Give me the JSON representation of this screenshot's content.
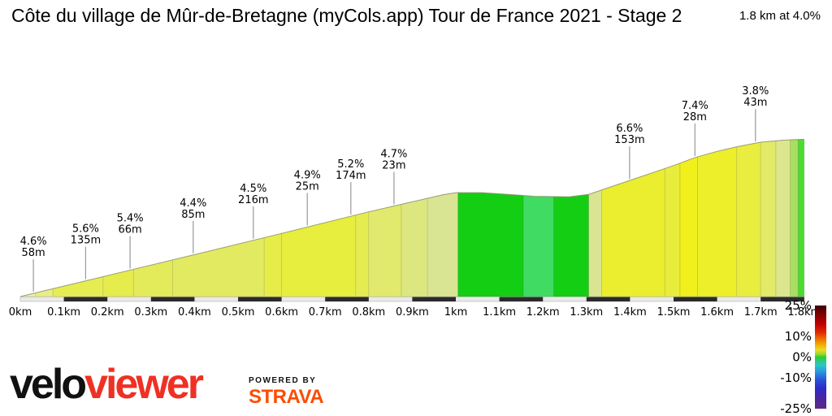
{
  "title": "Côte du village de Mûr-de-Bretagne (myCols.app) Tour de France 2021 - Stage 2",
  "summary": "1.8 km at 4.0%",
  "branding": {
    "velo": "velo",
    "viewer": "viewer",
    "powered_by": "POWERED BY",
    "strava": "STRAVA",
    "viewer_color": "#EE3124",
    "strava_color": "#FC4C02"
  },
  "chart_data": {
    "type": "area",
    "title": "Côte du village de Mûr-de-Bretagne (myCols.app) Tour de France 2021 - Stage 2",
    "total_distance_km": 1.8,
    "average_gradient_pct": 4.0,
    "x_ticks": [
      "0km",
      "0.1km",
      "0.2km",
      "0.3km",
      "0.4km",
      "0.5km",
      "0.6km",
      "0.7km",
      "0.8km",
      "0.9km",
      "1km",
      "1.1km",
      "1.2km",
      "1.3km",
      "1.4km",
      "1.5km",
      "1.6km",
      "1.7km",
      "1.8km"
    ],
    "gradient_labels": [
      {
        "pct": "4.6%",
        "len": "58m",
        "at_km": 0.03
      },
      {
        "pct": "5.6%",
        "len": "135m",
        "at_km": 0.15
      },
      {
        "pct": "5.4%",
        "len": "66m",
        "at_km": 0.252
      },
      {
        "pct": "4.4%",
        "len": "85m",
        "at_km": 0.397
      },
      {
        "pct": "4.5%",
        "len": "216m",
        "at_km": 0.535
      },
      {
        "pct": "4.9%",
        "len": "25m",
        "at_km": 0.659
      },
      {
        "pct": "5.2%",
        "len": "174m",
        "at_km": 0.759
      },
      {
        "pct": "4.7%",
        "len": "23m",
        "at_km": 0.858
      },
      {
        "pct": "6.6%",
        "len": "153m",
        "at_km": 1.399
      },
      {
        "pct": "7.4%",
        "len": "28m",
        "at_km": 1.549
      },
      {
        "pct": "3.8%",
        "len": "43m",
        "at_km": 1.688
      }
    ],
    "profile": [
      {
        "km": 0.0,
        "el": 0.0
      },
      {
        "km": 0.2,
        "el": 9.6
      },
      {
        "km": 0.4,
        "el": 19.2
      },
      {
        "km": 0.6,
        "el": 28.9
      },
      {
        "km": 0.8,
        "el": 38.8
      },
      {
        "km": 0.9,
        "el": 43.4
      },
      {
        "km": 0.97,
        "el": 46.6
      },
      {
        "km": 1.0,
        "el": 47.6
      },
      {
        "km": 1.06,
        "el": 47.6
      },
      {
        "km": 1.12,
        "el": 46.8
      },
      {
        "km": 1.18,
        "el": 45.9
      },
      {
        "km": 1.26,
        "el": 45.7
      },
      {
        "km": 1.305,
        "el": 46.8
      },
      {
        "km": 1.4,
        "el": 53.2
      },
      {
        "km": 1.5,
        "el": 60.0
      },
      {
        "km": 1.55,
        "el": 63.7
      },
      {
        "km": 1.6,
        "el": 66.5
      },
      {
        "km": 1.65,
        "el": 68.8
      },
      {
        "km": 1.7,
        "el": 70.7
      },
      {
        "km": 1.75,
        "el": 71.6
      },
      {
        "km": 1.78,
        "el": 71.9
      },
      {
        "km": 1.8,
        "el": 72.0
      }
    ],
    "segments": [
      {
        "from": 0.0,
        "to": 0.035,
        "color": "#ECF1A6"
      },
      {
        "from": 0.035,
        "to": 0.075,
        "color": "#E8EE85"
      },
      {
        "from": 0.075,
        "to": 0.19,
        "color": "#E6ED52"
      },
      {
        "from": 0.19,
        "to": 0.26,
        "color": "#E5EC4B"
      },
      {
        "from": 0.26,
        "to": 0.35,
        "color": "#E4EB5B"
      },
      {
        "from": 0.35,
        "to": 0.56,
        "color": "#E2EA61"
      },
      {
        "from": 0.56,
        "to": 0.6,
        "color": "#E6ED49"
      },
      {
        "from": 0.6,
        "to": 0.77,
        "color": "#E7EE3D"
      },
      {
        "from": 0.77,
        "to": 0.8,
        "color": "#E5EC51"
      },
      {
        "from": 0.8,
        "to": 0.875,
        "color": "#E1EA6C"
      },
      {
        "from": 0.875,
        "to": 0.935,
        "color": "#DDE77F"
      },
      {
        "from": 0.935,
        "to": 1.005,
        "color": "#DAE593"
      },
      {
        "from": 1.005,
        "to": 1.155,
        "color": "#14CE14"
      },
      {
        "from": 1.155,
        "to": 1.225,
        "color": "#3FDB63"
      },
      {
        "from": 1.225,
        "to": 1.305,
        "color": "#14CE14"
      },
      {
        "from": 1.305,
        "to": 1.335,
        "color": "#D9E593"
      },
      {
        "from": 1.335,
        "to": 1.48,
        "color": "#EAEE2F"
      },
      {
        "from": 1.48,
        "to": 1.515,
        "color": "#E8ED3D"
      },
      {
        "from": 1.515,
        "to": 1.555,
        "color": "#F2F01C"
      },
      {
        "from": 1.555,
        "to": 1.645,
        "color": "#EDEF2B"
      },
      {
        "from": 1.645,
        "to": 1.7,
        "color": "#E9ED3F"
      },
      {
        "from": 1.7,
        "to": 1.735,
        "color": "#E2EA68"
      },
      {
        "from": 1.735,
        "to": 1.768,
        "color": "#DCE78D"
      },
      {
        "from": 1.768,
        "to": 1.786,
        "color": "#A9DE60"
      },
      {
        "from": 1.786,
        "to": 1.8,
        "color": "#4CDB31"
      }
    ],
    "legend": {
      "ticks": [
        {
          "label": "25%",
          "value": 25
        },
        {
          "label": "10%",
          "value": 10
        },
        {
          "label": "0%",
          "value": 0
        },
        {
          "label": "-10%",
          "value": -10
        },
        {
          "label": "-25%",
          "value": -25
        }
      ],
      "stops": [
        {
          "o": 0.0,
          "c": "#3F0000"
        },
        {
          "o": 0.08,
          "c": "#7A0000"
        },
        {
          "o": 0.18,
          "c": "#C00000"
        },
        {
          "o": 0.26,
          "c": "#E02800"
        },
        {
          "o": 0.32,
          "c": "#EE6A00"
        },
        {
          "o": 0.38,
          "c": "#F2AC00"
        },
        {
          "o": 0.43,
          "c": "#EBDC20"
        },
        {
          "o": 0.47,
          "c": "#9ED929"
        },
        {
          "o": 0.5,
          "c": "#2ECC2E"
        },
        {
          "o": 0.54,
          "c": "#2BC987"
        },
        {
          "o": 0.58,
          "c": "#28C7C7"
        },
        {
          "o": 0.64,
          "c": "#2898E0"
        },
        {
          "o": 0.72,
          "c": "#2A52D8"
        },
        {
          "o": 0.8,
          "c": "#2C2CC8"
        },
        {
          "o": 0.88,
          "c": "#4526A8"
        },
        {
          "o": 1.0,
          "c": "#5C2A82"
        }
      ]
    }
  }
}
